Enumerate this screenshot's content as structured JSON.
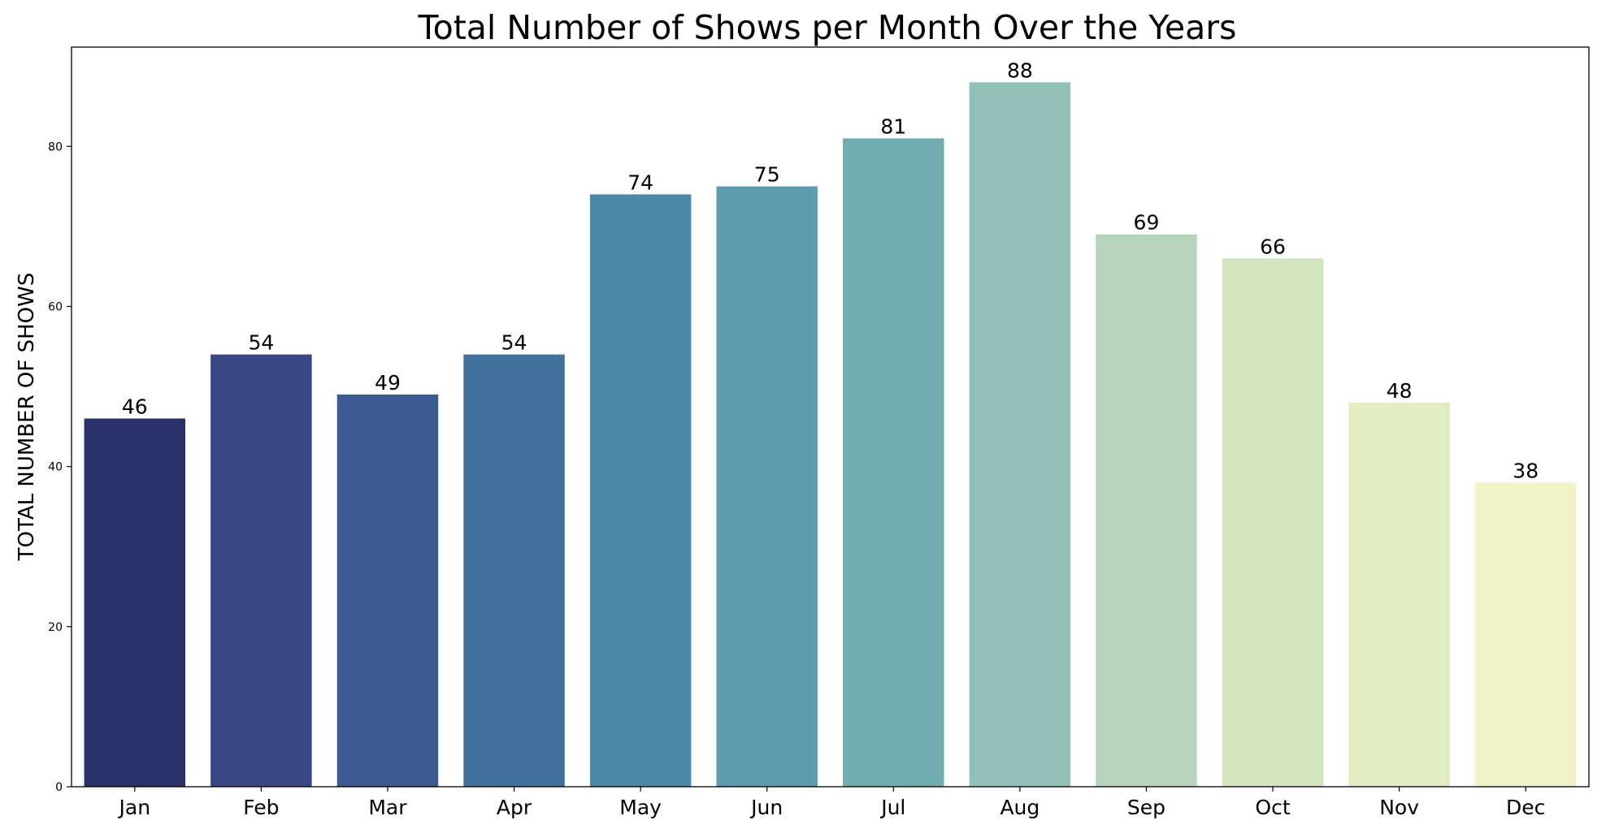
{
  "chart_data": {
    "type": "bar",
    "title": "Total Number of Shows per Month Over the Years",
    "xlabel": "",
    "ylabel": "TOTAL NUMBER OF SHOWS",
    "categories": [
      "Jan",
      "Feb",
      "Mar",
      "Apr",
      "May",
      "Jun",
      "Jul",
      "Aug",
      "Sep",
      "Oct",
      "Nov",
      "Dec"
    ],
    "values": [
      46,
      54,
      49,
      54,
      74,
      75,
      81,
      88,
      69,
      66,
      48,
      38
    ],
    "data_labels": [
      "46",
      "54",
      "49",
      "54",
      "74",
      "75",
      "81",
      "88",
      "69",
      "66",
      "48",
      "38"
    ],
    "colors": [
      "#2a3369",
      "#384786",
      "#3c5a92",
      "#41729c",
      "#4b89aa",
      "#5e9caf",
      "#73abb2",
      "#93c0b6",
      "#b7d5bc",
      "#d3e4c0",
      "#e3ecc2",
      "#f0f2c8"
    ],
    "yticks": [
      0,
      20,
      40,
      60,
      80
    ],
    "ytick_labels": [
      "0",
      "20",
      "40",
      "60",
      "80"
    ],
    "ylim": [
      0,
      92.4
    ],
    "grid": false,
    "legend": "none"
  }
}
